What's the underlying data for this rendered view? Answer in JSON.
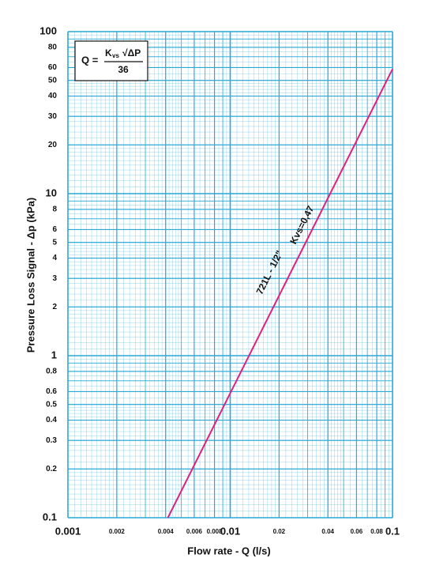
{
  "chart_data": {
    "type": "line",
    "x_label": "Flow rate - Q (l/s)",
    "y_label": "Pressure Loss Signal  - Δp (kPa)",
    "log_x": true,
    "log_y": true,
    "grid": true,
    "xlim": [
      0.001,
      0.1
    ],
    "ylim": [
      0.1,
      100
    ],
    "xticks": [
      0.001,
      0.002,
      0.004,
      0.006,
      0.008,
      0.01,
      0.02,
      0.04,
      0.06,
      0.08,
      0.1
    ],
    "yticks": [
      0.1,
      0.2,
      0.3,
      0.4,
      0.5,
      0.6,
      0.8,
      1,
      2,
      3,
      4,
      5,
      6,
      8,
      10,
      20,
      30,
      40,
      50,
      60,
      80,
      100
    ],
    "grid_color": "#29a8d6",
    "series": [
      {
        "color": "#e0217f",
        "x": [
          0.00413,
          0.1
        ],
        "values": [
          0.1,
          58.7
        ]
      }
    ],
    "line_label": "721L - 1/2\"",
    "kvs_label": "Kvs=0,47",
    "formula": {
      "lhs": "Q =",
      "k": "K",
      "k_sub": "vs",
      "root": "√ΔP",
      "denominator": "36"
    }
  }
}
